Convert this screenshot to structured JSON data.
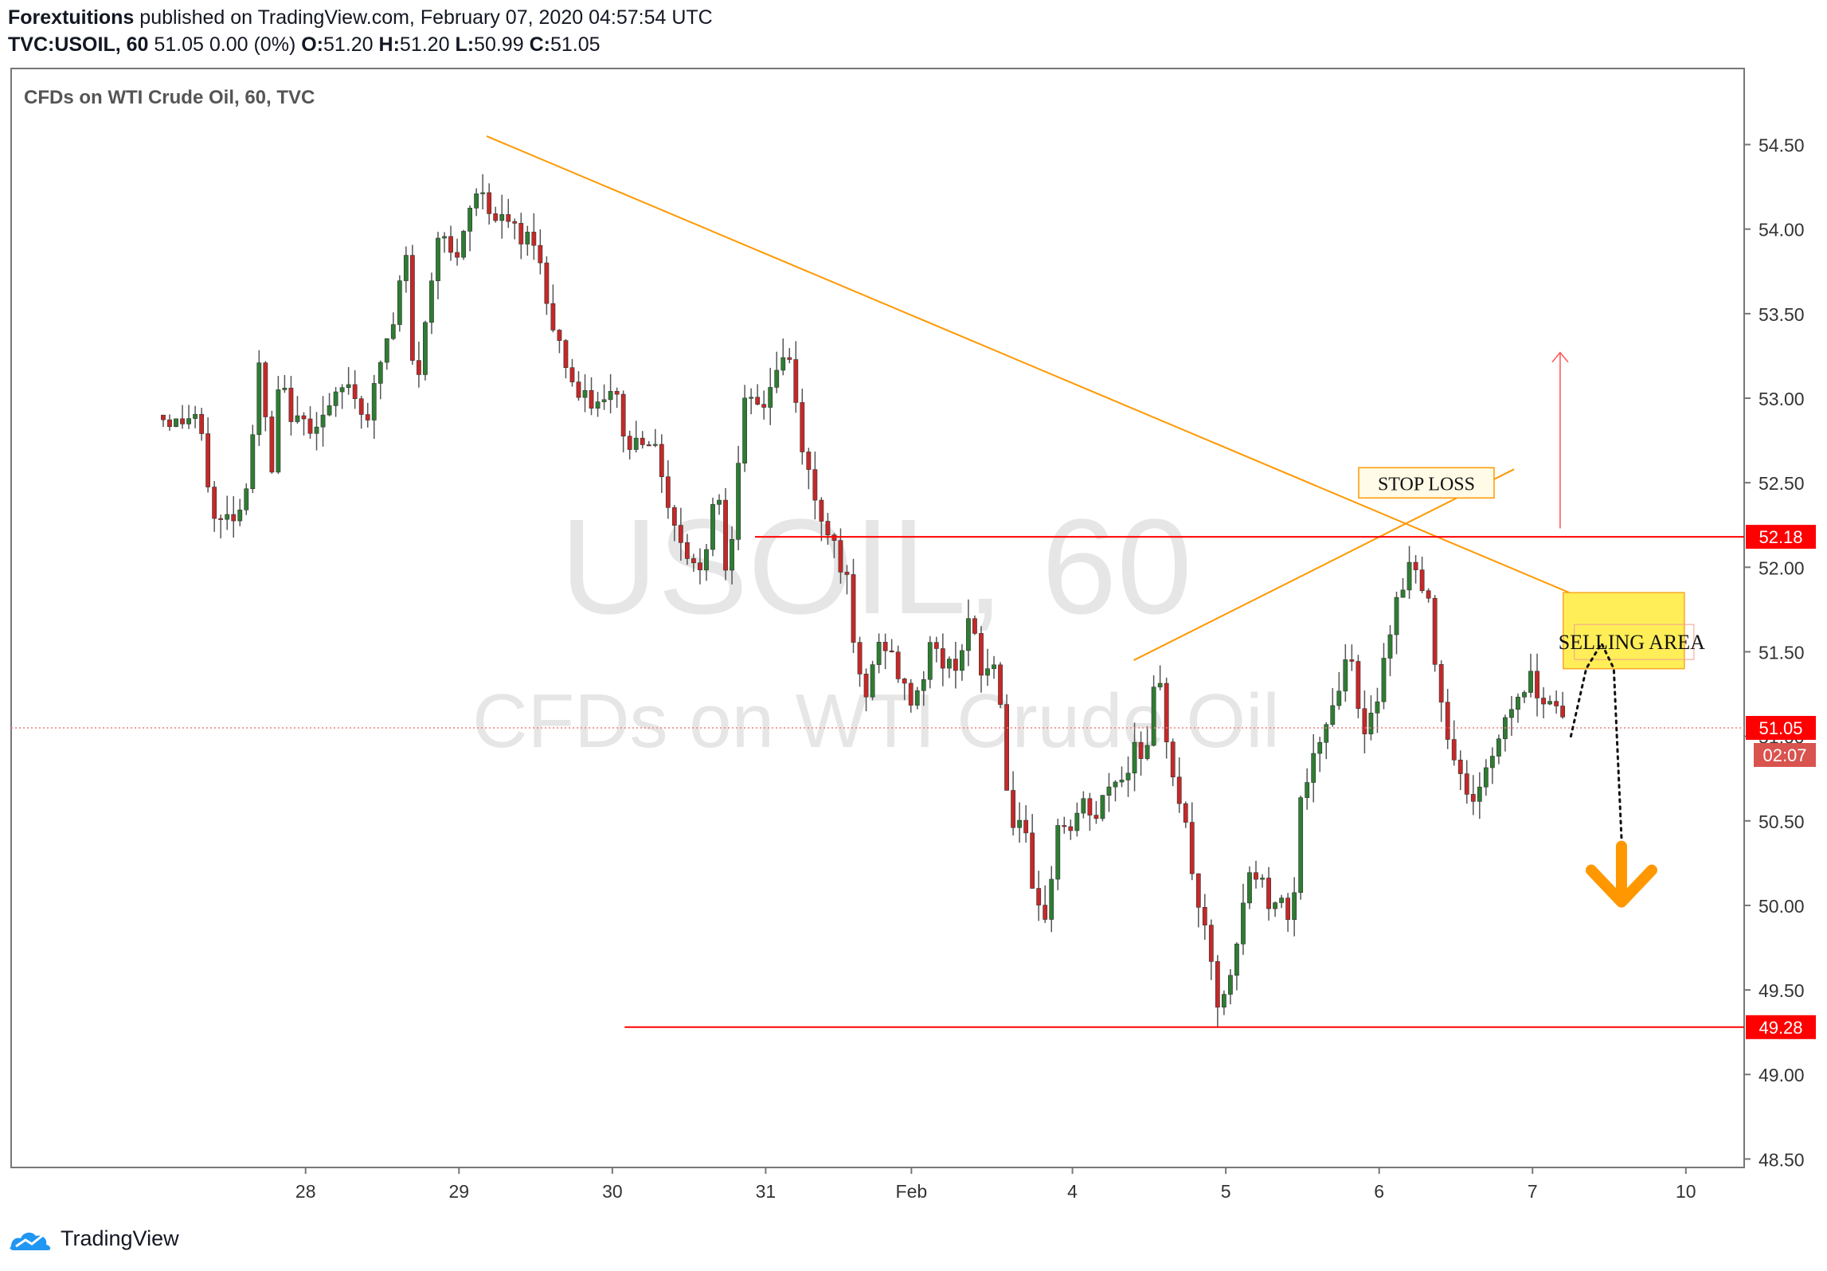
{
  "header": {
    "author": "Forextuitions",
    "published_text": " published on TradingView.com, February 07, 2020 04:57:54 UTC",
    "symbol": "TVC:USOIL, 60",
    "quote": "51.05 0.00 (0%)",
    "o_label": "O:",
    "o": "51.20",
    "h_label": "H:",
    "h": "51.20",
    "l_label": "L:",
    "l": "50.99",
    "c_label": "C:",
    "c": "51.05"
  },
  "chart_data": {
    "type": "candlestick",
    "title": "CFDs on WTI Crude Oil, 60, TVC",
    "watermark_symbol": "USOIL, 60",
    "watermark_name": "CFDs on WTI Crude Oil",
    "y_ticks": [
      "54.50",
      "54.00",
      "53.50",
      "53.00",
      "52.50",
      "52.00",
      "51.50",
      "51.00",
      "50.50",
      "50.00",
      "49.50",
      "49.00",
      "48.50"
    ],
    "y_tick_values": [
      54.5,
      54.0,
      53.5,
      53.0,
      52.5,
      52.0,
      51.5,
      51.0,
      50.5,
      50.0,
      49.5,
      49.0,
      48.5
    ],
    "ylim": [
      48.45,
      54.95
    ],
    "x_ticks": [
      {
        "label": "28",
        "t": 0.97
      },
      {
        "label": "29",
        "t": 1.97
      },
      {
        "label": "30",
        "t": 2.97
      },
      {
        "label": "31",
        "t": 3.97
      },
      {
        "label": "Feb",
        "t": 4.92
      },
      {
        "label": "4",
        "t": 5.97
      },
      {
        "label": "5",
        "t": 6.97
      },
      {
        "label": "6",
        "t": 7.97
      },
      {
        "label": "7",
        "t": 8.97
      },
      {
        "label": "10",
        "t": 9.97
      }
    ],
    "path": [
      [
        0.0,
        52.9
      ],
      [
        0.12,
        52.85
      ],
      [
        0.25,
        52.9
      ],
      [
        0.3,
        52.7
      ],
      [
        0.38,
        52.25
      ],
      [
        0.55,
        52.35
      ],
      [
        0.62,
        52.7
      ],
      [
        0.65,
        53.3
      ],
      [
        0.75,
        52.55
      ],
      [
        0.8,
        53.1
      ],
      [
        0.9,
        52.85
      ],
      [
        1.0,
        52.85
      ],
      [
        1.1,
        52.9
      ],
      [
        1.25,
        53.1
      ],
      [
        1.32,
        52.95
      ],
      [
        1.38,
        52.9
      ],
      [
        1.48,
        53.3
      ],
      [
        1.55,
        53.45
      ],
      [
        1.62,
        53.9
      ],
      [
        1.68,
        53.0
      ],
      [
        1.78,
        53.6
      ],
      [
        1.85,
        54.1
      ],
      [
        1.95,
        53.75
      ],
      [
        2.05,
        54.15
      ],
      [
        2.12,
        54.25
      ],
      [
        2.2,
        54.05
      ],
      [
        2.3,
        54.05
      ],
      [
        2.38,
        53.9
      ],
      [
        2.45,
        54.0
      ],
      [
        2.55,
        53.55
      ],
      [
        2.65,
        53.25
      ],
      [
        2.75,
        53.0
      ],
      [
        2.9,
        52.95
      ],
      [
        3.0,
        53.05
      ],
      [
        3.05,
        52.7
      ],
      [
        3.2,
        52.8
      ],
      [
        3.3,
        52.55
      ],
      [
        3.35,
        52.3
      ],
      [
        3.45,
        52.1
      ],
      [
        3.55,
        51.95
      ],
      [
        3.65,
        52.55
      ],
      [
        3.72,
        51.9
      ],
      [
        3.78,
        52.55
      ],
      [
        3.82,
        52.95
      ],
      [
        3.95,
        52.95
      ],
      [
        4.05,
        53.2
      ],
      [
        4.12,
        53.25
      ],
      [
        4.2,
        52.75
      ],
      [
        4.3,
        52.35
      ],
      [
        4.4,
        52.2
      ],
      [
        4.5,
        51.9
      ],
      [
        4.55,
        51.45
      ],
      [
        4.62,
        51.2
      ],
      [
        4.68,
        51.5
      ],
      [
        4.75,
        51.55
      ],
      [
        4.82,
        51.4
      ],
      [
        4.9,
        51.2
      ],
      [
        4.98,
        51.3
      ],
      [
        5.05,
        51.55
      ],
      [
        5.15,
        51.4
      ],
      [
        5.22,
        51.45
      ],
      [
        5.3,
        51.7
      ],
      [
        5.38,
        51.35
      ],
      [
        5.45,
        51.45
      ],
      [
        5.52,
        51.15
      ],
      [
        5.55,
        50.5
      ],
      [
        5.65,
        50.5
      ],
      [
        5.72,
        49.95
      ],
      [
        5.8,
        49.95
      ],
      [
        5.88,
        50.5
      ],
      [
        5.95,
        50.45
      ],
      [
        6.05,
        50.6
      ],
      [
        6.12,
        50.5
      ],
      [
        6.18,
        50.65
      ],
      [
        6.25,
        50.75
      ],
      [
        6.32,
        50.75
      ],
      [
        6.38,
        51.0
      ],
      [
        6.45,
        50.85
      ],
      [
        6.52,
        51.4
      ],
      [
        6.6,
        50.9
      ],
      [
        6.7,
        50.5
      ],
      [
        6.75,
        50.2
      ],
      [
        6.85,
        49.75
      ],
      [
        6.92,
        49.4
      ],
      [
        6.98,
        49.45
      ],
      [
        7.05,
        49.8
      ],
      [
        7.12,
        50.2
      ],
      [
        7.2,
        50.15
      ],
      [
        7.28,
        49.95
      ],
      [
        7.35,
        50.1
      ],
      [
        7.4,
        49.85
      ],
      [
        7.45,
        50.6
      ],
      [
        7.52,
        50.8
      ],
      [
        7.6,
        50.95
      ],
      [
        7.65,
        51.2
      ],
      [
        7.72,
        51.3
      ],
      [
        7.78,
        51.6
      ],
      [
        7.82,
        51.25
      ],
      [
        7.88,
        50.95
      ],
      [
        7.92,
        51.1
      ],
      [
        7.98,
        51.35
      ],
      [
        8.05,
        51.7
      ],
      [
        8.12,
        51.9
      ],
      [
        8.18,
        52.05
      ],
      [
        8.25,
        51.85
      ],
      [
        8.3,
        51.75
      ],
      [
        8.35,
        51.35
      ],
      [
        8.42,
        51.0
      ],
      [
        8.48,
        50.85
      ],
      [
        8.55,
        50.6
      ],
      [
        8.62,
        50.7
      ],
      [
        8.7,
        50.85
      ],
      [
        8.78,
        51.1
      ],
      [
        8.85,
        51.2
      ],
      [
        8.95,
        51.35
      ],
      [
        9.02,
        51.25
      ],
      [
        9.12,
        51.2
      ],
      [
        9.2,
        51.05
      ]
    ],
    "lines": [
      {
        "name": "trendline-upper",
        "x1": 2.15,
        "y1": 54.55,
        "x2": 9.55,
        "y2": 51.72,
        "color": "#ff9800"
      },
      {
        "name": "trendline-lower",
        "x1": 6.37,
        "y1": 51.45,
        "x2": 8.85,
        "y2": 52.58,
        "color": "#ff9800"
      },
      {
        "name": "resistance-line",
        "x1": 3.9,
        "y1": 52.18,
        "x2": 10.35,
        "y2": 52.18,
        "color": "#ff0000"
      },
      {
        "name": "support-line",
        "x1": 3.05,
        "y1": 49.28,
        "x2": 10.35,
        "y2": 49.28,
        "color": "#ff0000"
      },
      {
        "name": "price-line",
        "x1": -0.95,
        "y1": 51.05,
        "x2": 10.35,
        "y2": 51.05,
        "color": "#f08080"
      }
    ],
    "annotations": {
      "stop_loss": "STOP LOSS",
      "stop_loss_anchor": {
        "t": 8.2,
        "y": 52.57
      },
      "selling_area": "SELLING AREA",
      "selling_box": {
        "t1": 9.17,
        "t2": 9.96,
        "y1": 51.85,
        "y2": 51.4
      },
      "up_arrow": {
        "t": 9.15,
        "y1": 52.23,
        "y2": 53.27
      },
      "forecast": [
        [
          9.22,
          51.0
        ],
        [
          9.32,
          51.4
        ],
        [
          9.42,
          51.55
        ],
        [
          9.5,
          51.4
        ],
        [
          9.55,
          50.4
        ]
      ],
      "down_arrow_tip": {
        "t": 9.55,
        "y": 50.02
      }
    },
    "price_labels": [
      {
        "value": "52.18",
        "y": 52.18,
        "color": "#ff0000"
      },
      {
        "value": "51.05",
        "y": 51.05,
        "color": "#ff0000"
      },
      {
        "value": "49.28",
        "y": 49.28,
        "color": "#ff0000"
      }
    ],
    "countdown_label": "02:07",
    "colors": {
      "up": "#2e7d32",
      "down": "#c62828",
      "wick": "#555555",
      "accent": "#ff9800",
      "highlight": "#ffee58"
    }
  },
  "footer": {
    "brand": "TradingView"
  }
}
